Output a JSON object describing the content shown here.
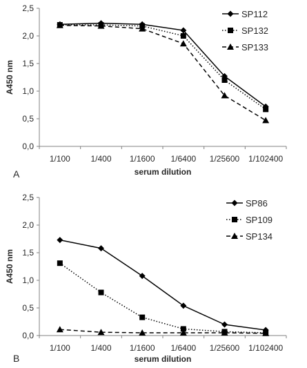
{
  "chart_data": [
    {
      "type": "line",
      "panel_label": "A",
      "xlabel": "serum dilution",
      "ylabel": "A450 nm",
      "categories": [
        "1/100",
        "1/400",
        "1/1600",
        "1/6400",
        "1/25600",
        "1/102400"
      ],
      "yticks": [
        "0,0",
        "0,5",
        "1,0",
        "1,5",
        "2,0",
        "2,5"
      ],
      "ylim": [
        0,
        2.5
      ],
      "grid": false,
      "legend_position": "top-right",
      "series": [
        {
          "name": "SP112",
          "marker": "diamond",
          "line": "solid",
          "values": [
            2.21,
            2.23,
            2.21,
            2.1,
            1.27,
            0.72
          ]
        },
        {
          "name": "SP132",
          "marker": "square",
          "line": "dotted",
          "values": [
            2.2,
            2.2,
            2.18,
            2.0,
            1.2,
            0.67
          ]
        },
        {
          "name": "SP133",
          "marker": "triangle",
          "line": "dashed",
          "values": [
            2.19,
            2.18,
            2.13,
            1.86,
            0.92,
            0.47
          ]
        }
      ]
    },
    {
      "type": "line",
      "panel_label": "B",
      "xlabel": "serum dilution",
      "ylabel": "A450 nm",
      "categories": [
        "1/100",
        "1/400",
        "1/1600",
        "1/6400",
        "1/25600",
        "1/102400"
      ],
      "yticks": [
        "0,0",
        "0,5",
        "1,0",
        "1,5",
        "2,0",
        "2,5"
      ],
      "ylim": [
        0,
        2.5
      ],
      "grid": false,
      "legend_position": "top-right",
      "series": [
        {
          "name": "SP86",
          "marker": "diamond",
          "line": "solid",
          "values": [
            1.73,
            1.58,
            1.08,
            0.54,
            0.2,
            0.1
          ]
        },
        {
          "name": "SP109",
          "marker": "square",
          "line": "dotted",
          "values": [
            1.31,
            0.78,
            0.33,
            0.12,
            0.07,
            0.05
          ]
        },
        {
          "name": "SP134",
          "marker": "triangle",
          "line": "dashed",
          "values": [
            0.11,
            0.06,
            0.05,
            0.05,
            0.05,
            0.04
          ]
        }
      ]
    }
  ],
  "colors": {
    "series": "#000000",
    "axis": "#808080",
    "text": "#262626"
  }
}
